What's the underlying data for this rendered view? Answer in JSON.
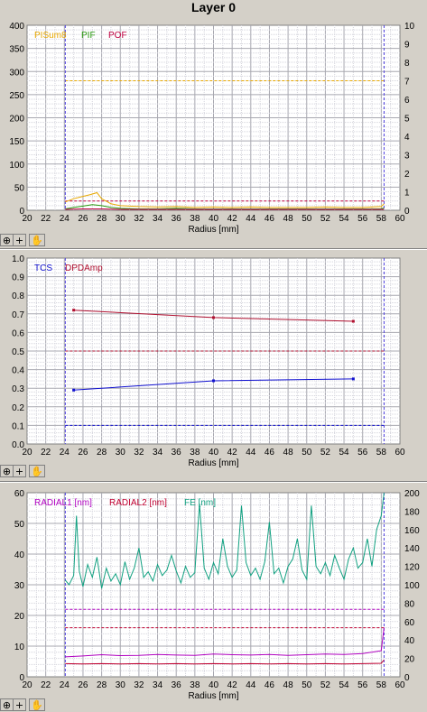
{
  "title": "Layer 0",
  "colors": {
    "pisum": "#e8a800",
    "pif": "#2a9a10",
    "pof": "#c00040",
    "tcs": "#1010d0",
    "dpdamp": "#b01030",
    "radial1": "#b000c0",
    "radial2": "#c00030",
    "fe": "#10a080",
    "cursor": "#5040e0"
  },
  "toolbar": {
    "icons": [
      "zoom-icon",
      "crosshair-icon",
      "pan-hand-icon"
    ]
  },
  "chart_data": [
    {
      "type": "line",
      "xlabel": "Radius [mm]",
      "xlim": [
        20,
        60
      ],
      "x_ticks": [
        "20",
        "22",
        "24",
        "26",
        "28",
        "30",
        "32",
        "34",
        "36",
        "38",
        "40",
        "42",
        "44",
        "46",
        "48",
        "50",
        "52",
        "54",
        "56",
        "58",
        "60"
      ],
      "ylim": [
        0,
        400
      ],
      "y_ticks": [
        "0",
        "50",
        "100",
        "150",
        "200",
        "250",
        "300",
        "350",
        "400"
      ],
      "y2lim": [
        0,
        10
      ],
      "y2_ticks": [
        "0",
        "1",
        "2",
        "3",
        "4",
        "5",
        "6",
        "7",
        "8",
        "9",
        "10"
      ],
      "cursors": [
        24.1,
        58.3
      ],
      "thresholds": [
        {
          "series": "PISum8",
          "y": 280
        },
        {
          "series": "POF",
          "y": 20
        }
      ],
      "series": [
        {
          "name": "PISum8",
          "x": [
            24.1,
            25,
            26,
            26.8,
            27.5,
            28,
            29,
            30,
            32,
            34,
            36,
            38,
            40,
            42,
            44,
            46,
            48,
            50,
            52,
            54,
            56,
            58,
            58.3
          ],
          "y": [
            18,
            25,
            30,
            34,
            38,
            25,
            14,
            10,
            8,
            7,
            8,
            6,
            7,
            6,
            7,
            6,
            6,
            6,
            7,
            6,
            6,
            8,
            14
          ]
        },
        {
          "name": "PIF",
          "x": [
            24.1,
            25,
            26,
            27,
            28,
            29,
            30,
            32,
            34,
            36,
            38,
            40,
            42,
            44,
            46,
            48,
            50,
            52,
            54,
            56,
            58,
            58.3
          ],
          "y": [
            3,
            6,
            9,
            12,
            10,
            6,
            4,
            3,
            3,
            4,
            3,
            3,
            3,
            3,
            3,
            3,
            3,
            3,
            3,
            3,
            3,
            5
          ]
        },
        {
          "name": "POF",
          "x": [
            24.1,
            26,
            28,
            30,
            32,
            34,
            36,
            38,
            40,
            42,
            44,
            46,
            48,
            50,
            52,
            54,
            56,
            58,
            58.3
          ],
          "y": [
            2,
            3,
            3,
            2,
            2,
            2,
            2,
            2,
            2,
            2,
            2,
            2,
            2,
            2,
            2,
            2,
            2,
            2,
            2
          ]
        }
      ]
    },
    {
      "type": "line",
      "xlabel": "Radius [mm]",
      "xlim": [
        20,
        60
      ],
      "x_ticks": [
        "20",
        "22",
        "24",
        "26",
        "28",
        "30",
        "32",
        "34",
        "36",
        "38",
        "40",
        "42",
        "44",
        "46",
        "48",
        "50",
        "52",
        "54",
        "56",
        "58",
        "60"
      ],
      "ylim": [
        0,
        1.0
      ],
      "y_ticks": [
        "0.0",
        "0.1",
        "0.2",
        "0.3",
        "0.4",
        "0.5",
        "0.6",
        "0.7",
        "0.8",
        "0.9",
        "1.0"
      ],
      "cursors": [
        24.1,
        58.3
      ],
      "thresholds": [
        {
          "series": "TCS",
          "y": 0.1
        },
        {
          "series": "DPDAmp",
          "y": 0.5
        }
      ],
      "series": [
        {
          "name": "TCS",
          "x": [
            25,
            40,
            55
          ],
          "y": [
            0.29,
            0.34,
            0.35
          ]
        },
        {
          "name": "DPDAmp",
          "x": [
            25,
            40,
            55
          ],
          "y": [
            0.72,
            0.68,
            0.66
          ]
        }
      ]
    },
    {
      "type": "line",
      "xlabel": "Radius [mm]",
      "xlim": [
        20,
        60
      ],
      "x_ticks": [
        "20",
        "22",
        "24",
        "26",
        "28",
        "30",
        "32",
        "34",
        "36",
        "38",
        "40",
        "42",
        "44",
        "46",
        "48",
        "50",
        "52",
        "54",
        "56",
        "58",
        "60"
      ],
      "ylim": [
        0,
        60
      ],
      "y_ticks": [
        "0",
        "10",
        "20",
        "30",
        "40",
        "50",
        "60"
      ],
      "y2lim": [
        0,
        200
      ],
      "y2_ticks": [
        "0",
        "20",
        "40",
        "60",
        "80",
        "100",
        "120",
        "140",
        "160",
        "180",
        "200"
      ],
      "cursors": [
        24.1,
        58.3
      ],
      "thresholds": [
        {
          "series": "RADIAL1 [nm]",
          "y": 22
        },
        {
          "series": "RADIAL2 [nm]",
          "y": 16
        }
      ],
      "series": [
        {
          "name": "RADIAL1 [nm]",
          "x": [
            24.1,
            26,
            28,
            30,
            32,
            34,
            36,
            38,
            40,
            42,
            44,
            46,
            48,
            50,
            52,
            54,
            56,
            58,
            58.3
          ],
          "y": [
            6.5,
            6.8,
            7.2,
            6.9,
            7.0,
            7.3,
            7.1,
            7.0,
            7.4,
            7.2,
            7.1,
            7.3,
            7.0,
            7.2,
            7.4,
            7.3,
            7.6,
            8.5,
            16
          ]
        },
        {
          "name": "RADIAL2 [nm]",
          "x": [
            24.1,
            26,
            28,
            30,
            32,
            34,
            36,
            38,
            40,
            42,
            44,
            46,
            48,
            50,
            52,
            54,
            56,
            58,
            58.3
          ],
          "y": [
            4.3,
            4.2,
            4.3,
            4.2,
            4.3,
            4.2,
            4.3,
            4.2,
            4.3,
            4.2,
            4.3,
            4.2,
            4.3,
            4.2,
            4.3,
            4.2,
            4.3,
            4.4,
            5.5
          ]
        },
        {
          "name": "FE [nm]",
          "y_axis": "right",
          "x": [
            24.1,
            24.5,
            25,
            25.3,
            25.6,
            26,
            26.5,
            27,
            27.5,
            28,
            28.5,
            29,
            29.5,
            30,
            30.5,
            31,
            31.5,
            32,
            32.5,
            33,
            33.5,
            34,
            34.5,
            35,
            35.5,
            36,
            36.5,
            37,
            37.5,
            38,
            38.5,
            39,
            39.5,
            40,
            40.5,
            41,
            41.5,
            42,
            42.5,
            43,
            43.5,
            44,
            44.5,
            45,
            45.5,
            46,
            46.5,
            47,
            47.5,
            48,
            48.5,
            49,
            49.5,
            50,
            50.5,
            51,
            51.5,
            52,
            52.5,
            53,
            53.5,
            54,
            54.5,
            55,
            55.5,
            56,
            56.5,
            57,
            57.5,
            58,
            58.3
          ],
          "y": [
            105,
            100,
            110,
            175,
            115,
            98,
            122,
            108,
            130,
            96,
            118,
            104,
            112,
            100,
            125,
            106,
            118,
            140,
            108,
            114,
            104,
            122,
            110,
            116,
            132,
            115,
            102,
            120,
            108,
            113,
            188,
            118,
            106,
            124,
            112,
            150,
            120,
            108,
            116,
            186,
            124,
            110,
            118,
            106,
            125,
            168,
            112,
            118,
            102,
            120,
            128,
            150,
            116,
            106,
            186,
            120,
            112,
            124,
            110,
            132,
            118,
            106,
            128,
            140,
            118,
            124,
            150,
            120,
            160,
            175,
            200
          ]
        }
      ]
    }
  ]
}
